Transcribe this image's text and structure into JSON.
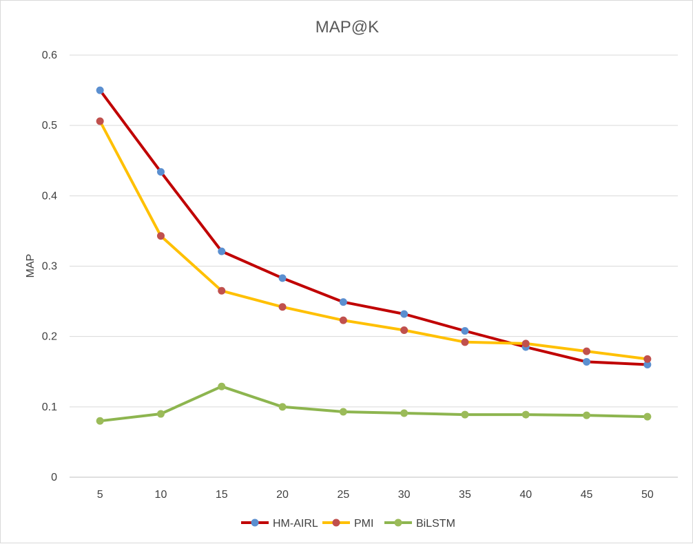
{
  "chart_data": {
    "type": "line",
    "title": "MAP@K",
    "xlabel": "",
    "ylabel": "MAP",
    "x": [
      5,
      10,
      15,
      20,
      25,
      30,
      35,
      40,
      45,
      50
    ],
    "ylim": [
      0,
      0.6
    ],
    "yticks": [
      0,
      0.1,
      0.2,
      0.3,
      0.4,
      0.5,
      0.6
    ],
    "ytick_labels": [
      "0",
      "0.1",
      "0.2",
      "0.3",
      "0.4",
      "0.5",
      "0.6"
    ],
    "xtick_labels": [
      "5",
      "10",
      "15",
      "20",
      "25",
      "30",
      "35",
      "40",
      "45",
      "50"
    ],
    "grid": true,
    "legend_position": "bottom",
    "series": [
      {
        "name": "HM-AIRL",
        "line_color": "#c00000",
        "marker_color": "#5b8fd0",
        "values": [
          0.55,
          0.434,
          0.321,
          0.283,
          0.249,
          0.232,
          0.208,
          0.185,
          0.164,
          0.16
        ]
      },
      {
        "name": "PMI",
        "line_color": "#ffc000",
        "marker_color": "#c0504d",
        "values": [
          0.506,
          0.343,
          0.265,
          0.242,
          0.223,
          0.209,
          0.192,
          0.19,
          0.179,
          0.168
        ]
      },
      {
        "name": "BiLSTM",
        "line_color": "#8db54f",
        "marker_color": "#9bbb59",
        "values": [
          0.08,
          0.09,
          0.129,
          0.1,
          0.093,
          0.091,
          0.089,
          0.089,
          0.088,
          0.086
        ]
      }
    ]
  }
}
